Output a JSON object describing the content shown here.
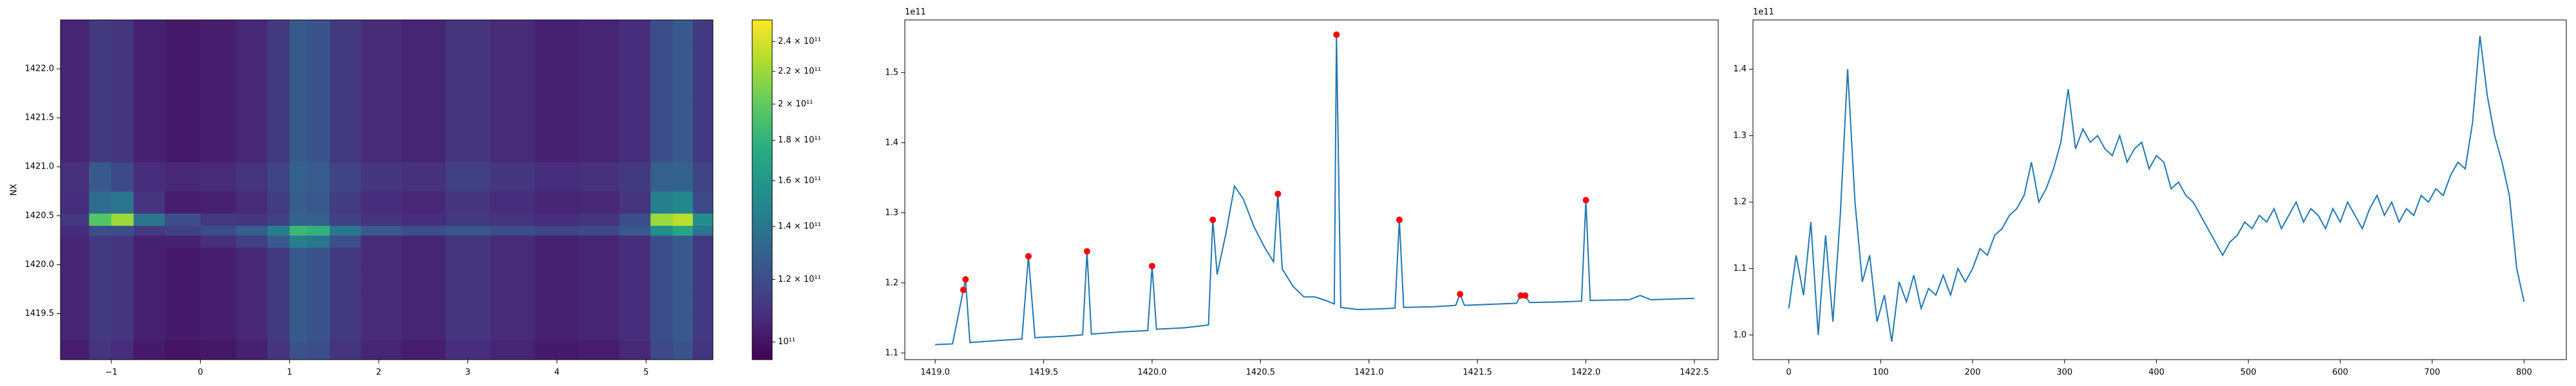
{
  "chart_data": [
    {
      "type": "heatmap",
      "ylabel": "NX",
      "xlim": [
        -1.57,
        5.75
      ],
      "ylim": [
        1419.03,
        1422.5
      ],
      "xticks": [
        {
          "value": -1,
          "label": "−1"
        },
        0,
        1,
        2,
        3,
        4,
        5
      ],
      "yticks": [
        1419.5,
        {
          "value": 1420,
          "label": "1420.0"
        },
        1420.5,
        {
          "value": 1421,
          "label": "1421.0"
        },
        1421.5,
        {
          "value": 1422,
          "label": "1422.0"
        }
      ],
      "cmap": "viridis",
      "color_scale": "log",
      "clim": [
        95000000000.0,
        255600000000.0
      ],
      "cticks": [
        {
          "value": 100000000000.0,
          "label": "10¹¹"
        },
        {
          "value": 120000000000.0,
          "label": "1.2 × 10¹¹"
        },
        {
          "value": 140000000000.0,
          "label": "1.4 × 10¹¹"
        },
        {
          "value": 160000000000.0,
          "label": "1.6 × 10¹¹"
        },
        {
          "value": 180000000000.0,
          "label": "1.8 × 10¹¹"
        },
        {
          "value": 200000000000.0,
          "label": "2 × 10¹¹"
        },
        {
          "value": 220000000000.0,
          "label": "2.2 × 10¹¹"
        },
        {
          "value": 240000000000.0,
          "label": "2.4 × 10¹¹"
        }
      ],
      "x": [
        -1.4,
        -1.1,
        -0.9,
        -0.6,
        -0.2,
        0.2,
        0.6,
        0.9,
        1.1,
        1.3,
        1.6,
        2.0,
        2.5,
        3.0,
        3.5,
        4.0,
        4.5,
        4.9,
        5.2,
        5.4,
        5.65
      ],
      "y": [
        1419.1,
        1419.35,
        1419.6,
        1419.85,
        1420.1,
        1420.25,
        1420.35,
        1420.45,
        1420.6,
        1420.9,
        1421.2,
        1421.5,
        1421.8,
        1422.1,
        1422.4
      ],
      "z": [
        [
          103000000000.0,
          110000000000.0,
          108000000000.0,
          102000000000.0,
          100000000000.0,
          101000000000.0,
          104000000000.0,
          110000000000.0,
          122000000000.0,
          120000000000.0,
          110000000000.0,
          105000000000.0,
          103000000000.0,
          108000000000.0,
          105000000000.0,
          102000000000.0,
          103000000000.0,
          106000000000.0,
          118000000000.0,
          122000000000.0,
          110000000000.0
        ],
        [
          105000000000.0,
          112000000000.0,
          110000000000.0,
          104000000000.0,
          102000000000.0,
          103000000000.0,
          106000000000.0,
          112000000000.0,
          125000000000.0,
          122000000000.0,
          112000000000.0,
          107000000000.0,
          105000000000.0,
          110000000000.0,
          107000000000.0,
          104000000000.0,
          105000000000.0,
          108000000000.0,
          120000000000.0,
          125000000000.0,
          112000000000.0
        ],
        [
          105000000000.0,
          112000000000.0,
          110000000000.0,
          104000000000.0,
          102000000000.0,
          103000000000.0,
          106000000000.0,
          112000000000.0,
          125000000000.0,
          122000000000.0,
          112000000000.0,
          107000000000.0,
          105000000000.0,
          110000000000.0,
          107000000000.0,
          104000000000.0,
          105000000000.0,
          108000000000.0,
          120000000000.0,
          125000000000.0,
          112000000000.0
        ],
        [
          105000000000.0,
          112000000000.0,
          110000000000.0,
          104000000000.0,
          102000000000.0,
          103000000000.0,
          106000000000.0,
          112000000000.0,
          125000000000.0,
          122000000000.0,
          112000000000.0,
          107000000000.0,
          105000000000.0,
          110000000000.0,
          107000000000.0,
          104000000000.0,
          105000000000.0,
          108000000000.0,
          120000000000.0,
          125000000000.0,
          112000000000.0
        ],
        [
          105000000000.0,
          112000000000.0,
          110000000000.0,
          104000000000.0,
          102000000000.0,
          103000000000.0,
          106000000000.0,
          112000000000.0,
          125000000000.0,
          122000000000.0,
          112000000000.0,
          107000000000.0,
          105000000000.0,
          110000000000.0,
          107000000000.0,
          104000000000.0,
          105000000000.0,
          108000000000.0,
          120000000000.0,
          125000000000.0,
          112000000000.0
        ],
        [
          105000000000.0,
          112000000000.0,
          110000000000.0,
          104000000000.0,
          104000000000.0,
          108000000000.0,
          114000000000.0,
          125000000000.0,
          145000000000.0,
          140000000000.0,
          120000000000.0,
          107000000000.0,
          105000000000.0,
          110000000000.0,
          107000000000.0,
          104000000000.0,
          105000000000.0,
          108000000000.0,
          120000000000.0,
          125000000000.0,
          112000000000.0
        ],
        [
          108000000000.0,
          120000000000.0,
          120000000000.0,
          112000000000.0,
          115000000000.0,
          120000000000.0,
          128000000000.0,
          145000000000.0,
          185000000000.0,
          180000000000.0,
          140000000000.0,
          125000000000.0,
          120000000000.0,
          124000000000.0,
          120000000000.0,
          117000000000.0,
          118000000000.0,
          125000000000.0,
          155000000000.0,
          170000000000.0,
          140000000000.0
        ],
        [
          112000000000.0,
          195000000000.0,
          220000000000.0,
          140000000000.0,
          120000000000.0,
          112000000000.0,
          110000000000.0,
          115000000000.0,
          130000000000.0,
          128000000000.0,
          115000000000.0,
          110000000000.0,
          108000000000.0,
          112000000000.0,
          110000000000.0,
          108000000000.0,
          110000000000.0,
          120000000000.0,
          220000000000.0,
          230000000000.0,
          155000000000.0
        ],
        [
          108000000000.0,
          135000000000.0,
          140000000000.0,
          110000000000.0,
          103000000000.0,
          104000000000.0,
          107000000000.0,
          113000000000.0,
          127000000000.0,
          124000000000.0,
          113000000000.0,
          108000000000.0,
          106000000000.0,
          111000000000.0,
          108000000000.0,
          105000000000.0,
          106000000000.0,
          110000000000.0,
          145000000000.0,
          150000000000.0,
          118000000000.0
        ],
        [
          109000000000.0,
          125000000000.0,
          118000000000.0,
          108000000000.0,
          106000000000.0,
          107000000000.0,
          110000000000.0,
          116000000000.0,
          129000000000.0,
          126000000000.0,
          116000000000.0,
          111000000000.0,
          109000000000.0,
          114000000000.0,
          111000000000.0,
          108000000000.0,
          109000000000.0,
          112000000000.0,
          128000000000.0,
          130000000000.0,
          116000000000.0
        ],
        [
          105000000000.0,
          112000000000.0,
          110000000000.0,
          104000000000.0,
          102000000000.0,
          103000000000.0,
          106000000000.0,
          112000000000.0,
          125000000000.0,
          122000000000.0,
          112000000000.0,
          107000000000.0,
          105000000000.0,
          110000000000.0,
          107000000000.0,
          104000000000.0,
          105000000000.0,
          108000000000.0,
          120000000000.0,
          125000000000.0,
          112000000000.0
        ],
        [
          105000000000.0,
          112000000000.0,
          110000000000.0,
          104000000000.0,
          102000000000.0,
          103000000000.0,
          106000000000.0,
          112000000000.0,
          125000000000.0,
          122000000000.0,
          112000000000.0,
          107000000000.0,
          105000000000.0,
          110000000000.0,
          107000000000.0,
          104000000000.0,
          105000000000.0,
          108000000000.0,
          120000000000.0,
          125000000000.0,
          112000000000.0
        ],
        [
          105000000000.0,
          112000000000.0,
          110000000000.0,
          104000000000.0,
          102000000000.0,
          103000000000.0,
          106000000000.0,
          112000000000.0,
          125000000000.0,
          122000000000.0,
          112000000000.0,
          107000000000.0,
          105000000000.0,
          110000000000.0,
          107000000000.0,
          104000000000.0,
          105000000000.0,
          108000000000.0,
          120000000000.0,
          125000000000.0,
          112000000000.0
        ],
        [
          105000000000.0,
          112000000000.0,
          110000000000.0,
          104000000000.0,
          102000000000.0,
          103000000000.0,
          106000000000.0,
          112000000000.0,
          125000000000.0,
          122000000000.0,
          112000000000.0,
          107000000000.0,
          105000000000.0,
          110000000000.0,
          107000000000.0,
          104000000000.0,
          105000000000.0,
          108000000000.0,
          120000000000.0,
          125000000000.0,
          112000000000.0
        ],
        [
          105000000000.0,
          112000000000.0,
          110000000000.0,
          104000000000.0,
          102000000000.0,
          103000000000.0,
          106000000000.0,
          112000000000.0,
          125000000000.0,
          122000000000.0,
          112000000000.0,
          107000000000.0,
          105000000000.0,
          110000000000.0,
          107000000000.0,
          104000000000.0,
          105000000000.0,
          108000000000.0,
          120000000000.0,
          125000000000.0,
          112000000000.0
        ]
      ]
    },
    {
      "type": "line",
      "y_offset_label": "1e11",
      "xlim": [
        1418.86,
        1422.61
      ],
      "ylim": [
        1.0906,
        1.575
      ],
      "xticks": [
        {
          "value": 1419,
          "label": "1419.0"
        },
        1419.5,
        {
          "value": 1420,
          "label": "1420.0"
        },
        1420.5,
        {
          "value": 1421,
          "label": "1421.0"
        },
        1421.5,
        {
          "value": 1422,
          "label": "1422.0"
        },
        1422.5
      ],
      "yticks": [
        1.1,
        1.2,
        1.3,
        1.4,
        1.5
      ],
      "series": [
        {
          "color": "#1f77b4",
          "x": [
            1419,
            1419.08,
            1419.13,
            1419.14,
            1419.16,
            1419.3,
            1419.4,
            1419.43,
            1419.46,
            1419.6,
            1419.68,
            1419.7,
            1419.72,
            1419.85,
            1419.98,
            1420,
            1420.02,
            1420.15,
            1420.26,
            1420.28,
            1420.3,
            1420.34,
            1420.38,
            1420.42,
            1420.47,
            1420.52,
            1420.56,
            1420.58,
            1420.6,
            1420.65,
            1420.7,
            1420.75,
            1420.8,
            1420.84,
            1420.85,
            1420.87,
            1420.95,
            1421.05,
            1421.12,
            1421.14,
            1421.16,
            1421.3,
            1421.4,
            1421.42,
            1421.44,
            1421.6,
            1421.68,
            1421.7,
            1421.72,
            1421.74,
            1421.9,
            1421.98,
            1422,
            1422.02,
            1422.2,
            1422.25,
            1422.3,
            1422.5
          ],
          "values": [
            1.112,
            1.113,
            1.19,
            1.205,
            1.115,
            1.118,
            1.12,
            1.238,
            1.122,
            1.124,
            1.126,
            1.245,
            1.127,
            1.13,
            1.132,
            1.224,
            1.134,
            1.136,
            1.14,
            1.29,
            1.212,
            1.27,
            1.338,
            1.32,
            1.28,
            1.25,
            1.23,
            1.327,
            1.22,
            1.195,
            1.18,
            1.18,
            1.175,
            1.17,
            1.554,
            1.165,
            1.162,
            1.163,
            1.164,
            1.29,
            1.165,
            1.166,
            1.168,
            1.184,
            1.168,
            1.17,
            1.171,
            1.182,
            1.182,
            1.172,
            1.173,
            1.174,
            1.318,
            1.175,
            1.176,
            1.182,
            1.176,
            1.178
          ]
        },
        {
          "color": "red",
          "marker": "o",
          "x": [
            1419.13,
            1419.14,
            1419.43,
            1419.7,
            1420,
            1420.28,
            1420.58,
            1420.85,
            1421.14,
            1421.42,
            1421.7,
            1421.72,
            1422
          ],
          "values": [
            1.19,
            1.205,
            1.238,
            1.245,
            1.224,
            1.29,
            1.327,
            1.554,
            1.29,
            1.184,
            1.182,
            1.182,
            1.318
          ]
        }
      ]
    },
    {
      "type": "line",
      "y_offset_label": "1e11",
      "xlim": [
        -39,
        846
      ],
      "ylim": [
        0.963,
        1.474
      ],
      "xticks": [
        0,
        100,
        200,
        300,
        400,
        500,
        600,
        700,
        800
      ],
      "yticks": [
        {
          "value": 1,
          "label": "1.0"
        },
        1.1,
        1.2,
        1.3,
        1.4
      ],
      "series": [
        {
          "color": "#1f77b4",
          "x": [
            0,
            8,
            16,
            24,
            32,
            40,
            48,
            56,
            64,
            72,
            80,
            88,
            96,
            104,
            112,
            120,
            128,
            136,
            144,
            152,
            160,
            168,
            176,
            184,
            192,
            200,
            208,
            216,
            224,
            232,
            240,
            248,
            256,
            264,
            272,
            280,
            288,
            296,
            304,
            312,
            320,
            328,
            336,
            344,
            352,
            360,
            368,
            376,
            384,
            392,
            400,
            408,
            416,
            424,
            432,
            440,
            448,
            456,
            464,
            472,
            480,
            488,
            496,
            504,
            512,
            520,
            528,
            536,
            544,
            552,
            560,
            568,
            576,
            584,
            592,
            600,
            608,
            616,
            624,
            632,
            640,
            648,
            656,
            664,
            672,
            680,
            688,
            696,
            704,
            712,
            720,
            728,
            736,
            744,
            752,
            760,
            768,
            776,
            784,
            792,
            800
          ],
          "values": [
            1.04,
            1.12,
            1.06,
            1.17,
            1.0,
            1.15,
            1.02,
            1.18,
            1.4,
            1.2,
            1.08,
            1.12,
            1.02,
            1.06,
            0.99,
            1.08,
            1.05,
            1.09,
            1.04,
            1.07,
            1.06,
            1.09,
            1.06,
            1.1,
            1.08,
            1.1,
            1.13,
            1.12,
            1.15,
            1.16,
            1.18,
            1.19,
            1.21,
            1.26,
            1.2,
            1.22,
            1.25,
            1.29,
            1.37,
            1.28,
            1.31,
            1.29,
            1.3,
            1.28,
            1.27,
            1.3,
            1.26,
            1.28,
            1.29,
            1.25,
            1.27,
            1.26,
            1.22,
            1.23,
            1.21,
            1.2,
            1.18,
            1.16,
            1.14,
            1.12,
            1.14,
            1.15,
            1.17,
            1.16,
            1.18,
            1.17,
            1.19,
            1.16,
            1.18,
            1.2,
            1.17,
            1.19,
            1.18,
            1.16,
            1.19,
            1.17,
            1.2,
            1.18,
            1.16,
            1.19,
            1.21,
            1.18,
            1.2,
            1.17,
            1.19,
            1.18,
            1.21,
            1.2,
            1.22,
            1.21,
            1.24,
            1.26,
            1.25,
            1.32,
            1.45,
            1.36,
            1.3,
            1.26,
            1.21,
            1.1,
            1.05
          ]
        }
      ]
    }
  ]
}
